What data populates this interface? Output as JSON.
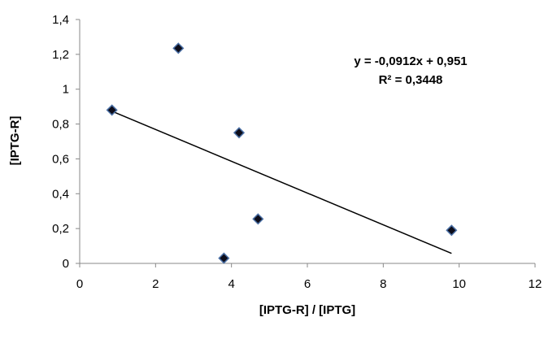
{
  "chart_data": {
    "type": "scatter",
    "xlabel": "[IPTG-R] / [IPTG]",
    "ylabel": "[IPTG-R]",
    "xlim": [
      0,
      12
    ],
    "ylim": [
      0,
      1.4
    ],
    "xticks": [
      0,
      2,
      4,
      6,
      8,
      10,
      12
    ],
    "xtick_labels": [
      "0",
      "2",
      "4",
      "6",
      "8",
      "10",
      "12"
    ],
    "yticks": [
      0,
      0.2,
      0.4,
      0.6,
      0.8,
      1,
      1.2,
      1.4
    ],
    "ytick_labels": [
      "0",
      "0,2",
      "0,4",
      "0,6",
      "0,8",
      "1",
      "1,2",
      "1,4"
    ],
    "grid": false,
    "legend": "none",
    "marker": "diamond",
    "marker_color": "#0d0d1a",
    "marker_edge_color": "#4a6fa5",
    "points": [
      {
        "x": 0.85,
        "y": 0.88
      },
      {
        "x": 2.6,
        "y": 1.235
      },
      {
        "x": 4.2,
        "y": 0.75
      },
      {
        "x": 3.8,
        "y": 0.03
      },
      {
        "x": 4.7,
        "y": 0.255
      },
      {
        "x": 9.8,
        "y": 0.19
      }
    ],
    "trendline": {
      "slope": -0.0912,
      "intercept": 0.951,
      "x_range": [
        0.85,
        9.8
      ],
      "color": "#000000"
    },
    "annotations": [
      {
        "text": "y = -0,0912x + 0,951"
      },
      {
        "text": "R² = 0,3448"
      }
    ]
  }
}
